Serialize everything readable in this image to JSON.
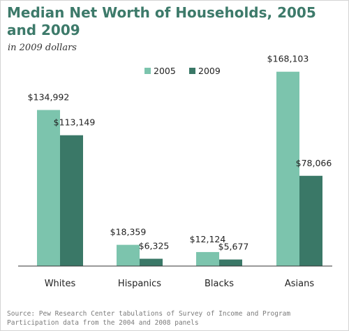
{
  "chart_data": {
    "type": "bar",
    "title": "Median Net Worth of Households, 2005 and 2009",
    "subtitle": "in 2009 dollars",
    "categories": [
      "Whites",
      "Hispanics",
      "Blacks",
      "Asians"
    ],
    "series": [
      {
        "name": "2005",
        "values": [
          134992,
          18359,
          12124,
          168103
        ],
        "labels": [
          "$134,992",
          "$18,359",
          "$12,124",
          "$168,103"
        ],
        "color": "#7cc4ad"
      },
      {
        "name": "2009",
        "values": [
          113149,
          6325,
          5677,
          78066
        ],
        "labels": [
          "$113,149",
          "$6,325",
          "$5,677",
          "$78,066"
        ],
        "color": "#3a7867"
      }
    ],
    "ylim": [
      0,
      180000
    ],
    "xlabel": "",
    "ylabel": "",
    "grid": false,
    "legend": "top-center"
  },
  "source": "Source: Pew Research Center tabulations of Survey of Income and Program Participation data from the 2004 and 2008 panels"
}
